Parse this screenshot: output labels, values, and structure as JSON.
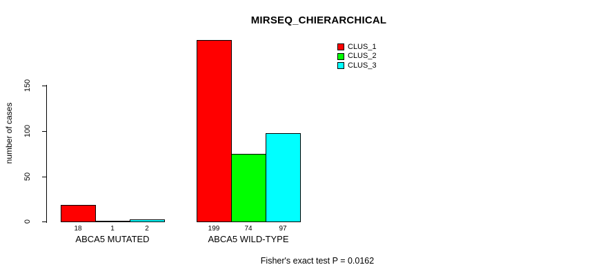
{
  "title": "MIRSEQ_CHIERARCHICAL",
  "chart_data": {
    "type": "bar",
    "title": "MIRSEQ_CHIERARCHICAL",
    "xlabel": "",
    "ylabel": "number of cases",
    "yticks": [
      0,
      50,
      100,
      150
    ],
    "ylim": [
      0,
      199
    ],
    "grid": false,
    "legend_position": "top-right",
    "categories": [
      "ABCA5 MUTATED",
      "ABCA5 WILD-TYPE"
    ],
    "series": [
      {
        "name": "CLUS_1",
        "color": "#ff0000",
        "values": [
          18,
          199
        ]
      },
      {
        "name": "CLUS_2",
        "color": "#00ff00",
        "values": [
          1,
          74
        ]
      },
      {
        "name": "CLUS_3",
        "color": "#00ffff",
        "values": [
          2,
          97
        ]
      }
    ],
    "bar_value_labels": [
      [
        18,
        1,
        2
      ],
      [
        199,
        74,
        97
      ]
    ],
    "annotation": "Fisher's exact test P = 0.0162"
  }
}
